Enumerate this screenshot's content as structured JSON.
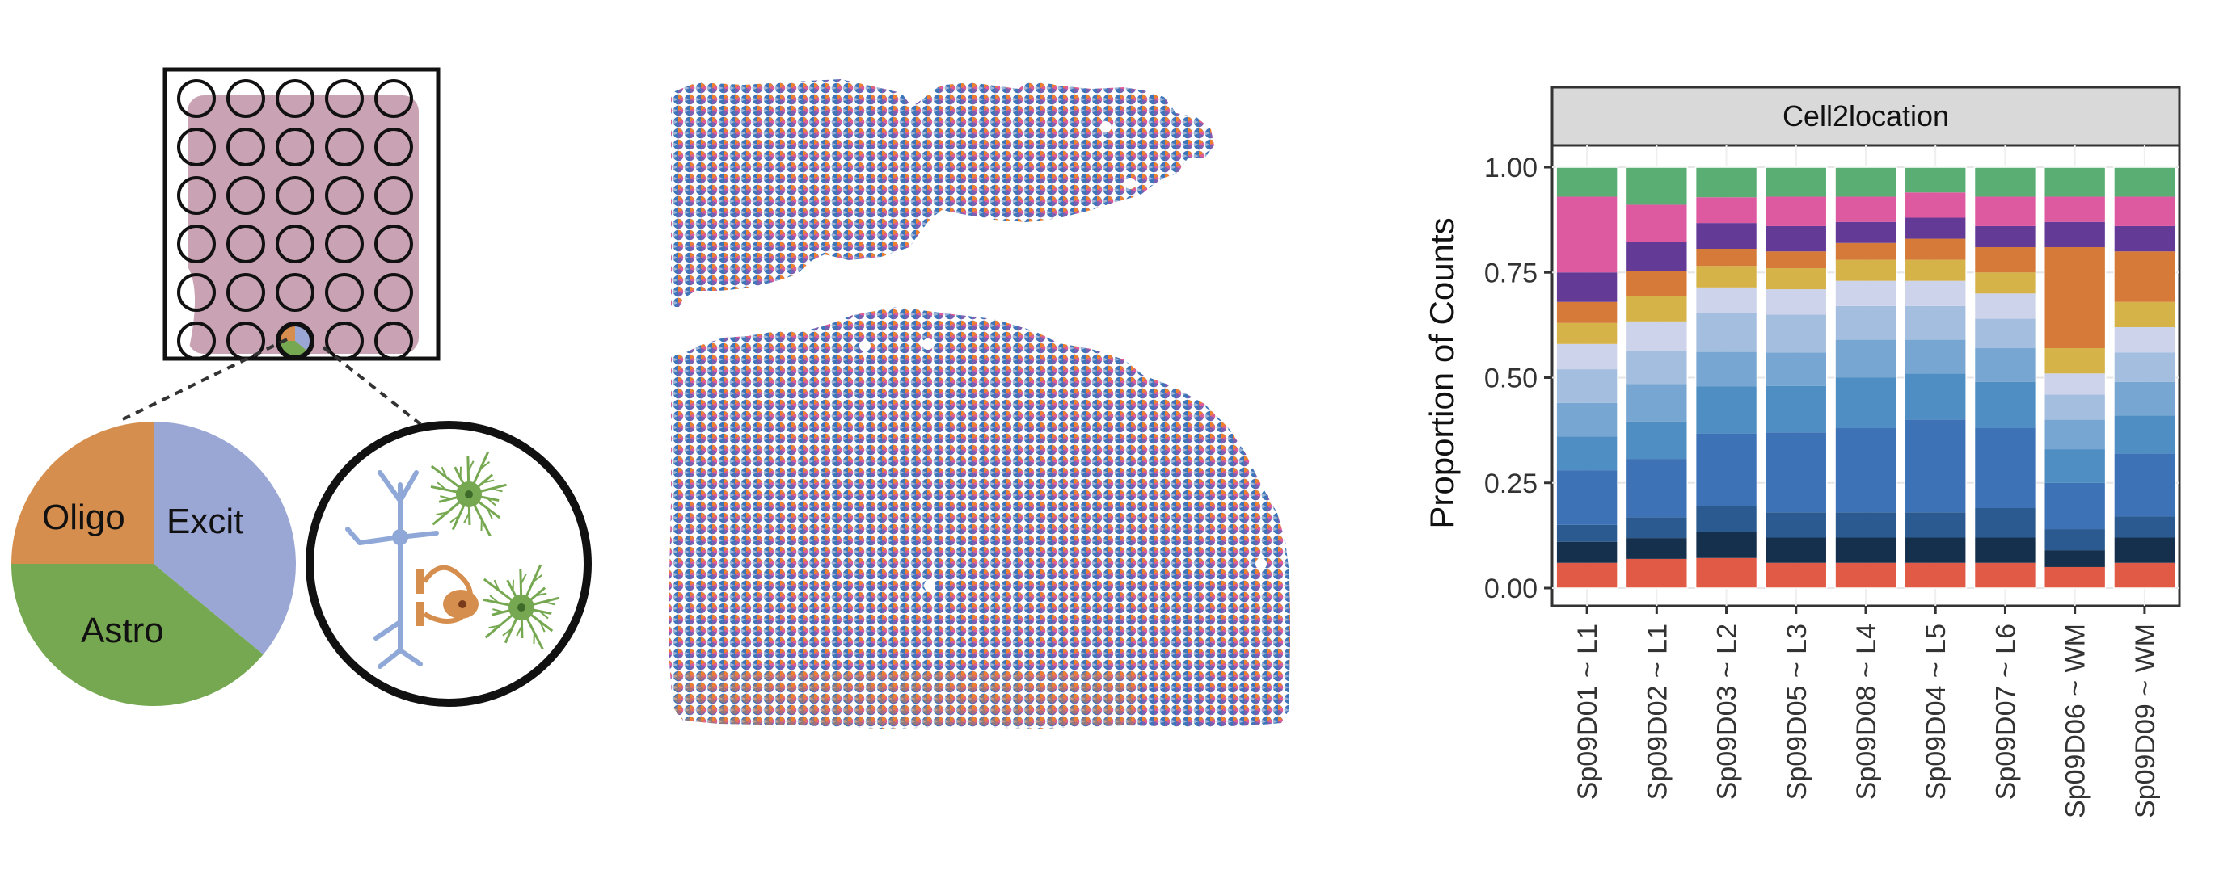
{
  "schematic": {
    "pie_labels": {
      "oligo": "Oligo",
      "excit": "Excit",
      "astro": "Astro"
    },
    "pie_fractions": {
      "excit": 0.36,
      "astro": 0.39,
      "oligo": 0.25
    },
    "colors": {
      "excit": "#9AA6D4",
      "astro": "#76A851",
      "oligo": "#D58E4D",
      "tissue": "#C9A3B4"
    },
    "icons": [
      "excitatory-neuron-icon",
      "astrocyte-icon",
      "oligodendrocyte-icon"
    ]
  },
  "spot_map": {
    "colors": [
      "#3E75B9",
      "#5A97CC",
      "#F07F2E",
      "#E35A98",
      "#7B5FB0",
      "#9FB6D8"
    ]
  },
  "chart_data": {
    "type": "bar",
    "stacked": true,
    "facet_title": "Cell2location",
    "ylabel": "Proportion of Counts",
    "xlabel": "",
    "ylim": [
      0,
      1
    ],
    "yticks": [
      "0.00",
      "0.25",
      "0.50",
      "0.75",
      "1.00"
    ],
    "ytick_values": [
      0,
      0.25,
      0.5,
      0.75,
      1.0
    ],
    "grid": true,
    "categories": [
      "Sp09D01 ~ L1",
      "Sp09D02 ~ L1",
      "Sp09D03 ~ L2",
      "Sp09D05 ~ L3",
      "Sp09D08 ~ L4",
      "Sp09D04 ~ L5",
      "Sp09D07 ~ L6",
      "Sp09D06 ~ WM",
      "Sp09D09 ~ WM"
    ],
    "series": [
      {
        "color": "#E05A46",
        "values": [
          0.06,
          0.07,
          0.07,
          0.06,
          0.06,
          0.06,
          0.06,
          0.05,
          0.06
        ]
      },
      {
        "color": "#15304D",
        "values": [
          0.05,
          0.05,
          0.06,
          0.06,
          0.06,
          0.06,
          0.06,
          0.04,
          0.06
        ]
      },
      {
        "color": "#2A5A8F",
        "values": [
          0.04,
          0.05,
          0.06,
          0.06,
          0.06,
          0.06,
          0.07,
          0.05,
          0.05
        ]
      },
      {
        "color": "#3D72B6",
        "values": [
          0.13,
          0.14,
          0.17,
          0.19,
          0.2,
          0.22,
          0.19,
          0.11,
          0.15
        ]
      },
      {
        "color": "#4F8EC3",
        "values": [
          0.08,
          0.09,
          0.11,
          0.11,
          0.12,
          0.11,
          0.11,
          0.08,
          0.09
        ]
      },
      {
        "color": "#76A6D1",
        "values": [
          0.08,
          0.09,
          0.08,
          0.08,
          0.09,
          0.08,
          0.08,
          0.07,
          0.08
        ]
      },
      {
        "color": "#A3BEDF",
        "values": [
          0.08,
          0.08,
          0.09,
          0.09,
          0.08,
          0.08,
          0.07,
          0.06,
          0.07
        ]
      },
      {
        "color": "#CDD3EA",
        "values": [
          0.06,
          0.07,
          0.06,
          0.06,
          0.06,
          0.06,
          0.06,
          0.05,
          0.06
        ]
      },
      {
        "color": "#D5B349",
        "values": [
          0.05,
          0.06,
          0.05,
          0.05,
          0.05,
          0.05,
          0.05,
          0.06,
          0.06
        ]
      },
      {
        "color": "#D57A38",
        "values": [
          0.05,
          0.06,
          0.04,
          0.04,
          0.04,
          0.05,
          0.06,
          0.24,
          0.12
        ]
      },
      {
        "color": "#643A97",
        "values": [
          0.07,
          0.07,
          0.06,
          0.06,
          0.05,
          0.05,
          0.05,
          0.06,
          0.06
        ]
      },
      {
        "color": "#DD5AA0",
        "values": [
          0.18,
          0.09,
          0.06,
          0.07,
          0.06,
          0.06,
          0.07,
          0.06,
          0.07
        ]
      },
      {
        "color": "#5AAE73",
        "values": [
          0.07,
          0.09,
          0.07,
          0.07,
          0.07,
          0.06,
          0.07,
          0.07,
          0.07
        ]
      }
    ]
  }
}
